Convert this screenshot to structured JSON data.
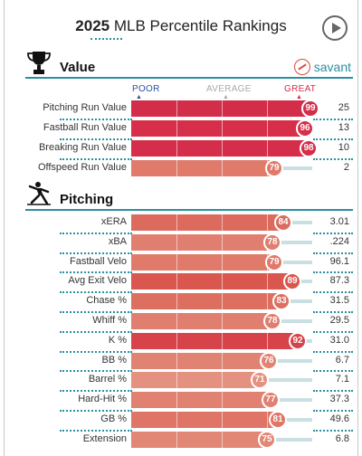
{
  "header": {
    "year": "2025",
    "title": "MLB Percentile Rankings"
  },
  "play_button": {
    "icon": "play-icon"
  },
  "scale": {
    "poor": "POOR",
    "average": "AVERAGE",
    "great": "GREAT"
  },
  "colors": {
    "accent": "#2a8fa0",
    "great": "#d22d49",
    "track": "#c9dfe1"
  },
  "value_section": {
    "title": "Value",
    "icon": "trophy-icon",
    "brand": "savant",
    "rows": [
      {
        "label": "Pitching Run Value",
        "percentile": "99",
        "value": "25",
        "color": "#d22d49"
      },
      {
        "label": "Fastball Run Value",
        "percentile": "96",
        "value": "13",
        "color": "#d72f4a"
      },
      {
        "label": "Breaking Run Value",
        "percentile": "98",
        "value": "10",
        "color": "#d42e4a"
      },
      {
        "label": "Offspeed Run Value",
        "percentile": "79",
        "value": "2",
        "color": "#e07a6b"
      }
    ]
  },
  "pitching_section": {
    "title": "Pitching",
    "icon": "pitcher-icon",
    "rows": [
      {
        "label": "xERA",
        "percentile": "84",
        "value": "3.01",
        "color": "#dc6b5e"
      },
      {
        "label": "xBA",
        "percentile": "78",
        "value": ".224",
        "color": "#e07e6f"
      },
      {
        "label": "Fastball Velo",
        "percentile": "79",
        "value": "96.1",
        "color": "#e07a6b"
      },
      {
        "label": "Avg Exit Velo",
        "percentile": "89",
        "value": "87.3",
        "color": "#d9574f"
      },
      {
        "label": "Chase %",
        "percentile": "83",
        "value": "31.5",
        "color": "#dd6f61"
      },
      {
        "label": "Whiff %",
        "percentile": "78",
        "value": "29.5",
        "color": "#e07e6f"
      },
      {
        "label": "K %",
        "percentile": "92",
        "value": "31.0",
        "color": "#d6444a"
      },
      {
        "label": "BB %",
        "percentile": "76",
        "value": "6.7",
        "color": "#e18373"
      },
      {
        "label": "Barrel %",
        "percentile": "71",
        "value": "7.1",
        "color": "#e4917f"
      },
      {
        "label": "Hard-Hit %",
        "percentile": "77",
        "value": "37.3",
        "color": "#e08171"
      },
      {
        "label": "GB %",
        "percentile": "81",
        "value": "49.6",
        "color": "#de7566"
      },
      {
        "label": "Extension",
        "percentile": "75",
        "value": "6.8",
        "color": "#e28675"
      }
    ]
  }
}
